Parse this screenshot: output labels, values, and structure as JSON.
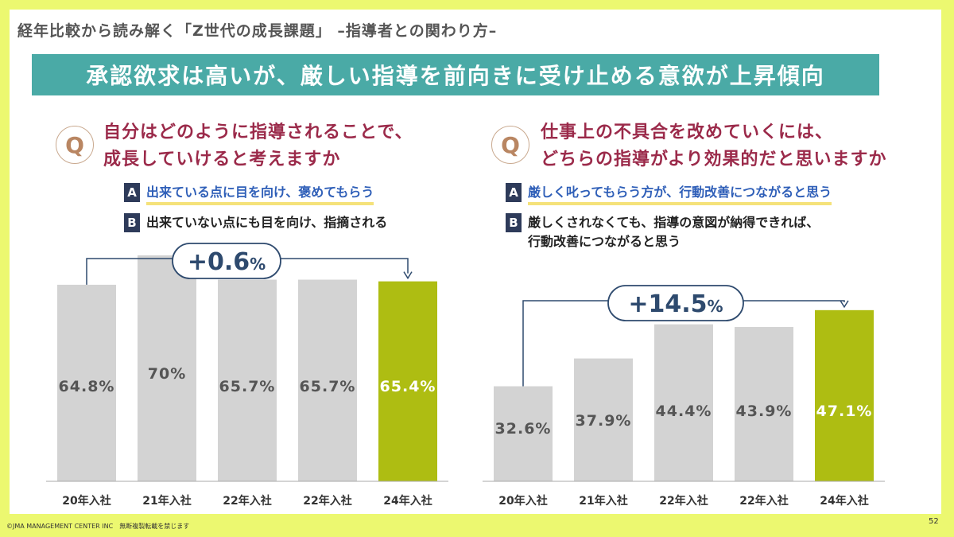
{
  "header": {
    "title": "経年比較から読み解く「Z世代の成長課題」 –指導者との関わり方–"
  },
  "headline": "承認欲求は高いが、厳しい指導を前向きに受け止める意欲が上昇傾向",
  "left": {
    "q_mark": "Q",
    "question_line1": "自分はどのように指導されることで、",
    "question_line2": "成長していけると考えますか",
    "option_a_letter": "A",
    "option_a": "出来ている点に目を向け、褒めてもらう",
    "option_b_letter": "B",
    "option_b": "出来ていない点にも目を向け、指摘される"
  },
  "right": {
    "q_mark": "Q",
    "question_line1": "仕事上の不具合を改めていくには、",
    "question_line2": "どちらの指導がより効果的だと思いますか",
    "option_a_letter": "A",
    "option_a": "厳しく叱ってもらう方が、行動改善につながると思う",
    "option_b_letter": "B",
    "option_b_line1": "厳しくされなくても、指導の意図が納得できれば、",
    "option_b_line2": "行動改善につながると思う"
  },
  "colors": {
    "bar_gray": "#d3d3d3",
    "bar_highlight": "#aebd12",
    "accent_navy": "#2e4a6e"
  },
  "chart_data": [
    {
      "type": "bar",
      "categories": [
        "20年入社",
        "21年入社",
        "22年入社",
        "22年入社",
        "24年入社"
      ],
      "values": [
        64.8,
        70,
        65.7,
        65.7,
        65.4
      ],
      "value_labels": [
        "64.8%",
        "70%",
        "65.7%",
        "65.7%",
        "65.4%"
      ],
      "highlight_index": 4,
      "change_label": "+0.6",
      "change_unit": "%"
    },
    {
      "type": "bar",
      "categories": [
        "20年入社",
        "21年入社",
        "22年入社",
        "22年入社",
        "24年入社"
      ],
      "values": [
        32.6,
        37.9,
        44.4,
        43.9,
        47.1
      ],
      "value_labels": [
        "32.6%",
        "37.9%",
        "44.4%",
        "43.9%",
        "47.1%"
      ],
      "highlight_index": 4,
      "change_label": "+14.5",
      "change_unit": "%"
    }
  ],
  "footer": {
    "copyright": "©JMA MANAGEMENT CENTER INC　無断複製転載を禁じます",
    "page": "52"
  }
}
